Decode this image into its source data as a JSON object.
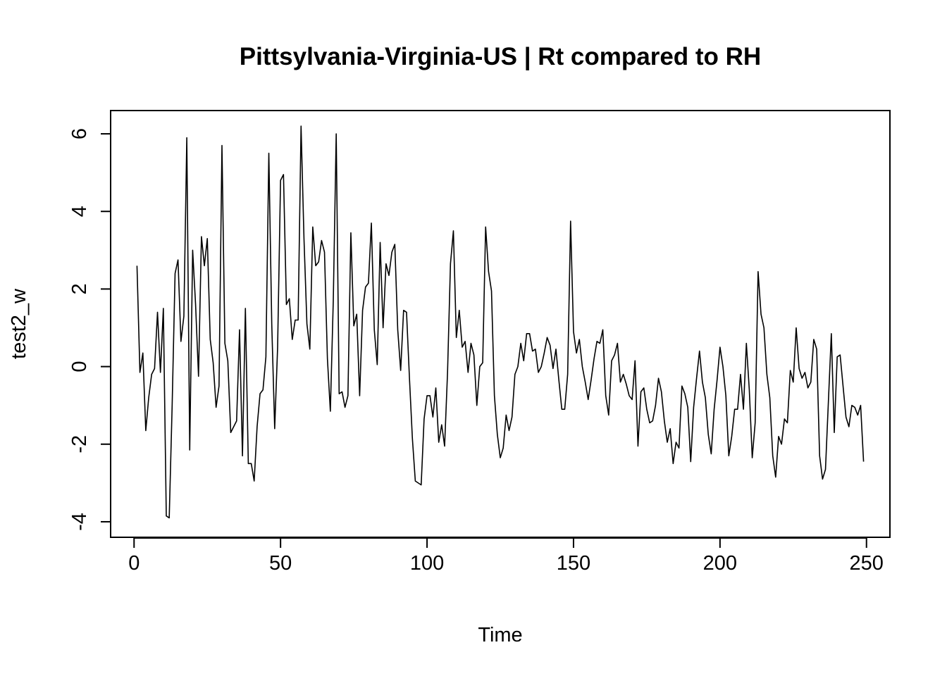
{
  "chart_data": {
    "type": "line",
    "title": "Pittsylvania-Virginia-US | Rt compared to RH",
    "xlabel": "Time",
    "ylabel": "test2_w",
    "xlim": [
      -8,
      258
    ],
    "ylim": [
      -4.4,
      6.6
    ],
    "x_ticks": [
      0,
      50,
      100,
      150,
      200,
      250
    ],
    "x_tick_labels": [
      "0",
      "50",
      "100",
      "150",
      "200",
      "250"
    ],
    "y_ticks": [
      -4,
      -2,
      0,
      2,
      4,
      6
    ],
    "y_tick_labels": [
      "-4",
      "-2",
      "0",
      "2",
      "4",
      "6"
    ],
    "grid": false,
    "legend": "none",
    "series": [
      {
        "color": "#000000",
        "x_start": 1,
        "x_step": 1,
        "values": [
          2.6,
          -0.15,
          0.35,
          -1.65,
          -0.8,
          -0.2,
          -0.05,
          1.4,
          -0.15,
          1.5,
          -3.85,
          -3.9,
          -1.0,
          2.4,
          2.75,
          0.65,
          1.3,
          5.9,
          -2.15,
          3.0,
          1.6,
          -0.25,
          3.35,
          2.6,
          3.3,
          0.7,
          0.1,
          -1.05,
          -0.5,
          5.7,
          0.6,
          0.15,
          -1.7,
          -1.55,
          -1.4,
          0.95,
          -2.3,
          1.5,
          -2.5,
          -2.5,
          -2.95,
          -1.55,
          -0.7,
          -0.6,
          0.25,
          5.5,
          1.1,
          -1.6,
          0.5,
          4.8,
          4.95,
          1.6,
          1.75,
          0.7,
          1.2,
          1.2,
          6.2,
          3.3,
          1.1,
          0.45,
          3.6,
          2.6,
          2.7,
          3.25,
          2.95,
          0.2,
          -1.15,
          1.7,
          6.0,
          -0.7,
          -0.65,
          -1.05,
          -0.75,
          3.45,
          1.05,
          1.35,
          -0.75,
          1.45,
          2.05,
          2.15,
          3.7,
          0.95,
          0.05,
          3.2,
          1.0,
          2.65,
          2.35,
          2.95,
          3.15,
          0.95,
          -0.1,
          1.45,
          1.4,
          -0.3,
          -1.85,
          -2.95,
          -3.0,
          -3.05,
          -1.35,
          -0.75,
          -0.75,
          -1.3,
          -0.55,
          -1.95,
          -1.5,
          -2.05,
          -0.15,
          2.65,
          3.5,
          0.75,
          1.45,
          0.5,
          0.65,
          -0.15,
          0.6,
          0.3,
          -1.0,
          0.0,
          0.1,
          3.6,
          2.45,
          1.95,
          -0.75,
          -1.75,
          -2.35,
          -2.1,
          -1.25,
          -1.65,
          -1.3,
          -0.2,
          0.0,
          0.6,
          0.15,
          0.85,
          0.85,
          0.4,
          0.45,
          -0.15,
          0.0,
          0.35,
          0.75,
          0.55,
          -0.05,
          0.45,
          -0.35,
          -1.1,
          -1.1,
          -0.2,
          3.75,
          0.9,
          0.35,
          0.7,
          0.0,
          -0.4,
          -0.85,
          -0.35,
          0.2,
          0.65,
          0.6,
          0.95,
          -0.75,
          -1.25,
          0.15,
          0.3,
          0.6,
          -0.4,
          -0.2,
          -0.45,
          -0.75,
          -0.85,
          0.15,
          -2.05,
          -0.65,
          -0.55,
          -1.1,
          -1.45,
          -1.4,
          -1.0,
          -0.3,
          -0.65,
          -1.4,
          -1.95,
          -1.6,
          -2.5,
          -1.95,
          -2.1,
          -0.5,
          -0.7,
          -1.05,
          -2.45,
          -1.05,
          -0.3,
          0.4,
          -0.4,
          -0.8,
          -1.75,
          -2.25,
          -1.1,
          -0.35,
          0.5,
          0.0,
          -0.75,
          -2.3,
          -1.8,
          -1.1,
          -1.1,
          -0.2,
          -1.1,
          0.6,
          -0.6,
          -2.35,
          -1.45,
          2.45,
          1.35,
          1.0,
          -0.2,
          -0.8,
          -2.3,
          -2.85,
          -1.8,
          -2.0,
          -1.35,
          -1.45,
          -0.1,
          -0.4,
          1.0,
          -0.05,
          -0.3,
          -0.15,
          -0.55,
          -0.4,
          0.7,
          0.45,
          -2.3,
          -2.9,
          -2.65,
          -0.9,
          0.85,
          -1.7,
          0.25,
          0.3,
          -0.5,
          -1.3,
          -1.55,
          -1.0,
          -1.05,
          -1.25,
          -1.0,
          -2.45
        ]
      }
    ]
  }
}
